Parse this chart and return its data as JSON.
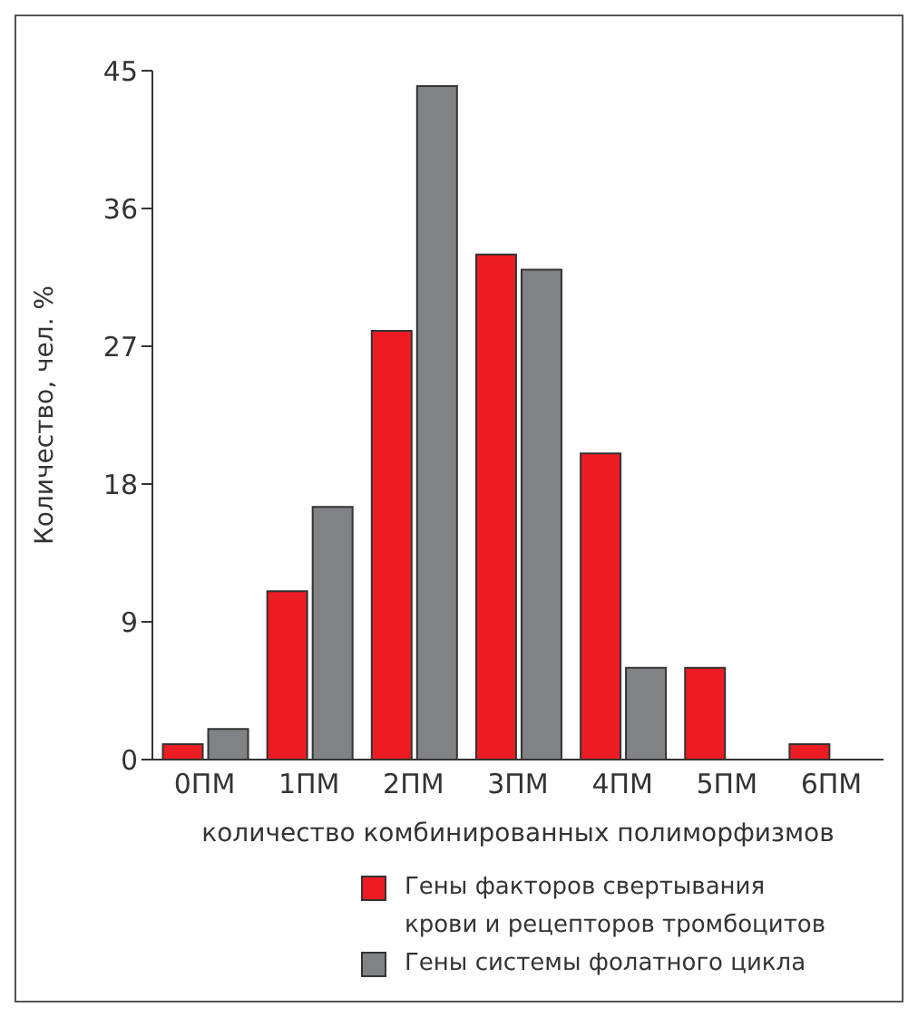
{
  "chart_data": {
    "type": "bar",
    "xlabel": "количество комбинированных полиморфизмов",
    "ylabel": "Количество, чел. %",
    "categories": [
      "0ПМ",
      "1ПМ",
      "2ПМ",
      "3ПМ",
      "4ПМ",
      "5ПМ",
      "6ПМ"
    ],
    "series": [
      {
        "name": "Гены факторов свертывания крови и рецепторов тромбоцитов",
        "color": "#ed1c24",
        "values": [
          1,
          11,
          28,
          33,
          20,
          6,
          1
        ]
      },
      {
        "name": "Гены системы фолатного цикла",
        "color": "#808285",
        "values": [
          2,
          16.5,
          44,
          32,
          6,
          null,
          null
        ]
      }
    ],
    "ylim": [
      0,
      45
    ],
    "yticks": [
      0,
      9,
      18,
      27,
      36,
      45
    ],
    "grid": false,
    "legend": "bottom"
  }
}
